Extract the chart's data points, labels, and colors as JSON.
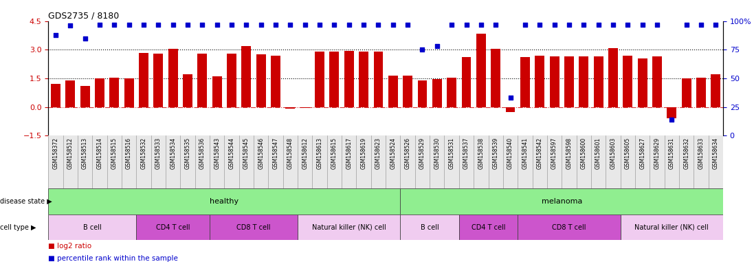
{
  "title": "GDS2735 / 8180",
  "samples": [
    "GSM158372",
    "GSM158512",
    "GSM158513",
    "GSM158514",
    "GSM158515",
    "GSM158516",
    "GSM158532",
    "GSM158533",
    "GSM158534",
    "GSM158535",
    "GSM158536",
    "GSM158543",
    "GSM158544",
    "GSM158545",
    "GSM158546",
    "GSM158547",
    "GSM158548",
    "GSM158612",
    "GSM158613",
    "GSM158615",
    "GSM158617",
    "GSM158619",
    "GSM158623",
    "GSM158524",
    "GSM158526",
    "GSM158529",
    "GSM158530",
    "GSM158531",
    "GSM158537",
    "GSM158538",
    "GSM158539",
    "GSM158540",
    "GSM158541",
    "GSM158542",
    "GSM158597",
    "GSM158598",
    "GSM158600",
    "GSM158601",
    "GSM158603",
    "GSM158605",
    "GSM158627",
    "GSM158629",
    "GSM158631",
    "GSM158632",
    "GSM158633",
    "GSM158634"
  ],
  "log2_ratio": [
    1.2,
    1.4,
    1.1,
    1.5,
    1.55,
    1.5,
    2.85,
    2.8,
    3.05,
    1.7,
    2.8,
    1.6,
    2.8,
    3.2,
    2.75,
    2.7,
    -0.1,
    -0.05,
    2.9,
    2.9,
    2.95,
    2.9,
    2.9,
    1.65,
    1.65,
    1.4,
    1.45,
    1.55,
    2.6,
    3.85,
    3.05,
    -0.25,
    2.6,
    2.7,
    2.65,
    2.65,
    2.65,
    2.65,
    3.1,
    2.7,
    2.55,
    2.65,
    -0.6,
    1.5,
    1.55,
    1.7
  ],
  "percentile": [
    88,
    96,
    85,
    97,
    97,
    97,
    97,
    97,
    97,
    97,
    97,
    97,
    97,
    97,
    97,
    97,
    97,
    97,
    97,
    97,
    97,
    97,
    97,
    97,
    97,
    75,
    78,
    97,
    97,
    97,
    97,
    33,
    97,
    97,
    97,
    97,
    97,
    97,
    97,
    97,
    97,
    97,
    14,
    97,
    97,
    97
  ],
  "bar_color": "#CC0000",
  "dot_color": "#0000CC",
  "ylim_left": [
    -1.5,
    4.5
  ],
  "ylim_right": [
    0,
    100
  ],
  "yticks_left": [
    -1.5,
    0,
    1.5,
    3,
    4.5
  ],
  "yticks_right": [
    0,
    25,
    50,
    75,
    100
  ],
  "ds_groups": [
    {
      "label": "healthy",
      "start": 0,
      "end": 23,
      "color": "#90EE90"
    },
    {
      "label": "melanoma",
      "start": 24,
      "end": 45,
      "color": "#90EE90"
    }
  ],
  "ct_groups": [
    {
      "label": "B cell",
      "start": 0,
      "end": 5,
      "color": "#F0CCF0"
    },
    {
      "label": "CD4 T cell",
      "start": 6,
      "end": 10,
      "color": "#CC55CC"
    },
    {
      "label": "CD8 T cell",
      "start": 11,
      "end": 16,
      "color": "#CC55CC"
    },
    {
      "label": "Natural killer (NK) cell",
      "start": 17,
      "end": 23,
      "color": "#F0CCF0"
    },
    {
      "label": "B cell",
      "start": 24,
      "end": 27,
      "color": "#F0CCF0"
    },
    {
      "label": "CD4 T cell",
      "start": 28,
      "end": 31,
      "color": "#CC55CC"
    },
    {
      "label": "CD8 T cell",
      "start": 32,
      "end": 38,
      "color": "#CC55CC"
    },
    {
      "label": "Natural killer (NK) cell",
      "start": 39,
      "end": 45,
      "color": "#F0CCF0"
    }
  ]
}
